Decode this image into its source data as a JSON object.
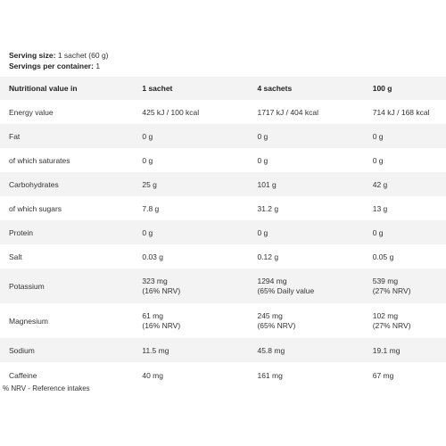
{
  "serving": {
    "size_label": "Serving size:",
    "size_value": "1 sachet (60 g)",
    "per_container_label": "Servings per container:",
    "per_container_value": "1"
  },
  "table": {
    "headers": [
      "Nutritional value in",
      "1 sachet",
      "4 sachets",
      "100 g"
    ],
    "rows": [
      {
        "label": "Energy value",
        "v1": "425 kJ / 100 kcal",
        "v2": "1717 kJ / 404 kcal",
        "v3": "714 kJ / 168 kcal"
      },
      {
        "label": "Fat",
        "v1": "0 g",
        "v2": "0 g",
        "v3": "0 g"
      },
      {
        "label": "of which saturates",
        "v1": "0 g",
        "v2": "0 g",
        "v3": "0 g"
      },
      {
        "label": "Carbohydrates",
        "v1": "25 g",
        "v2": "101 g",
        "v3": "42 g"
      },
      {
        "label": "of which sugars",
        "v1": "7.8 g",
        "v2": "31.2 g",
        "v3": "13 g"
      },
      {
        "label": "Protein",
        "v1": "0 g",
        "v2": "0 g",
        "v3": "0 g"
      },
      {
        "label": "Salt",
        "v1": "0.03 g",
        "v2": "0.12 g",
        "v3": "0.05 g"
      },
      {
        "label": "Potassium",
        "v1": "323 mg",
        "v1b": "(16% NRV)",
        "v2": "1294 mg",
        "v2b": "(65% Daily value",
        "v3": "539 mg",
        "v3b": "(27% NRV)"
      },
      {
        "label": "Magnesium",
        "v1": "61 mg",
        "v1b": "(16% NRV)",
        "v2": "245 mg",
        "v2b": "(65% NRV)",
        "v3": "102 mg",
        "v3b": "(27% NRV)"
      },
      {
        "label": "Sodium",
        "v1": "11.5 mg",
        "v2": "45.8 mg",
        "v3": "19.1 mg"
      },
      {
        "label": "Caffeine",
        "v1": "40 mg",
        "v2": "161 mg",
        "v3": "67 mg"
      }
    ]
  },
  "footnote": "% NRV - Reference intakes"
}
